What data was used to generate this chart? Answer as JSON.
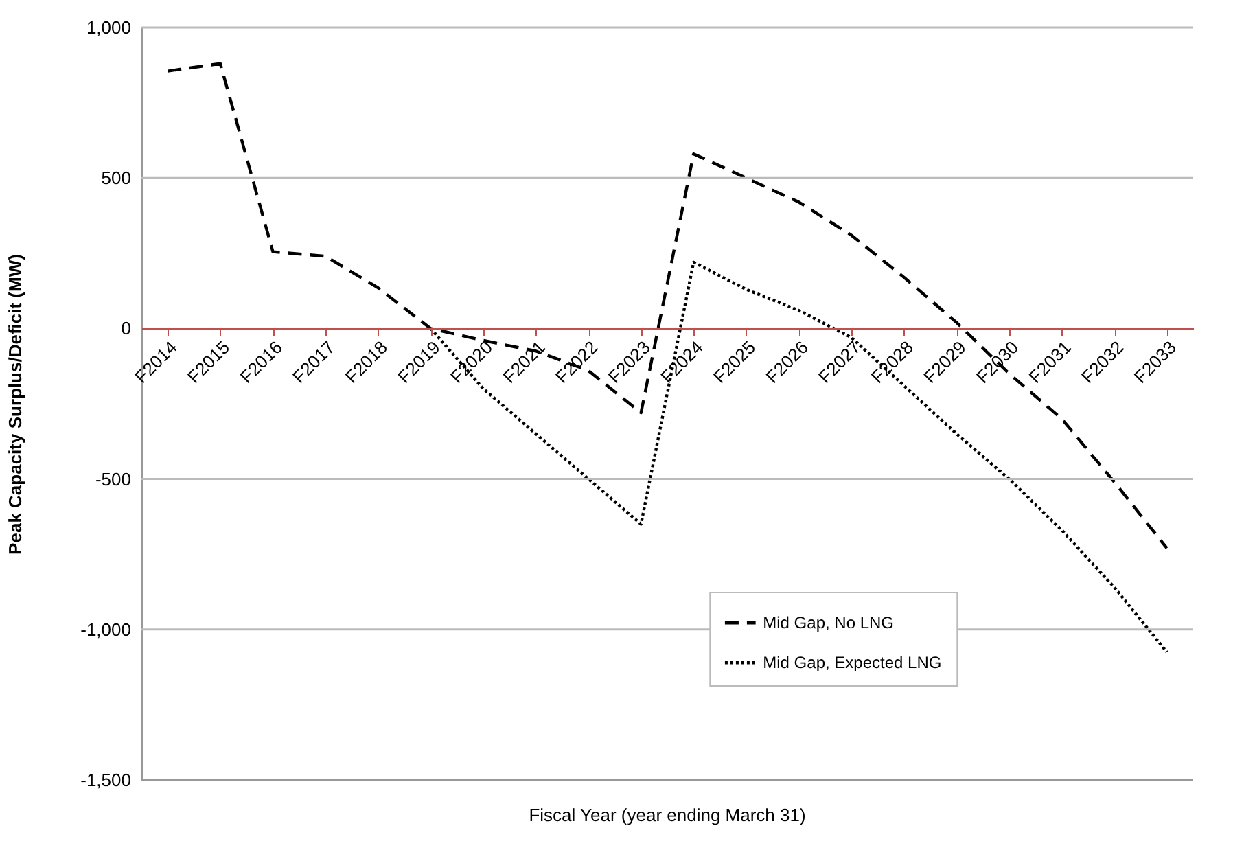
{
  "chart_data": {
    "type": "line",
    "xlabel": "Fiscal Year (year ending March 31)",
    "ylabel": "Peak Capacity Surplus/Deficit  (MW)",
    "categories": [
      "F2014",
      "F2015",
      "F2016",
      "F2017",
      "F2018",
      "F2019",
      "F2020",
      "F2021",
      "F2022",
      "F2023",
      "F2024",
      "F2025",
      "F2026",
      "F2027",
      "F2028",
      "F2029",
      "F2030",
      "F2031",
      "F2032",
      "F2033"
    ],
    "series": [
      {
        "name": "Mid Gap, No LNG",
        "color": "#000000",
        "line_style": "dashed",
        "values": [
          855,
          880,
          255,
          240,
          135,
          0,
          -40,
          -75,
          -140,
          -280,
          580,
          500,
          420,
          310,
          170,
          20,
          -150,
          -300,
          -510,
          -730
        ]
      },
      {
        "name": "Mid Gap, Expected LNG",
        "color": "#000000",
        "line_style": "dotted",
        "values": [
          null,
          null,
          null,
          null,
          null,
          0,
          -200,
          -350,
          -500,
          -650,
          220,
          130,
          60,
          -30,
          -190,
          -350,
          -500,
          -670,
          -860,
          -1075
        ]
      }
    ],
    "ylim": [
      -1500,
      1000
    ],
    "yticks": [
      {
        "value": -1500,
        "label": "-1,500"
      },
      {
        "value": -1000,
        "label": "-1,000"
      },
      -500,
      0,
      500,
      {
        "value": 1000,
        "label": "1,000"
      }
    ],
    "grid": "y",
    "legend": "bottom right",
    "marker": "none"
  }
}
